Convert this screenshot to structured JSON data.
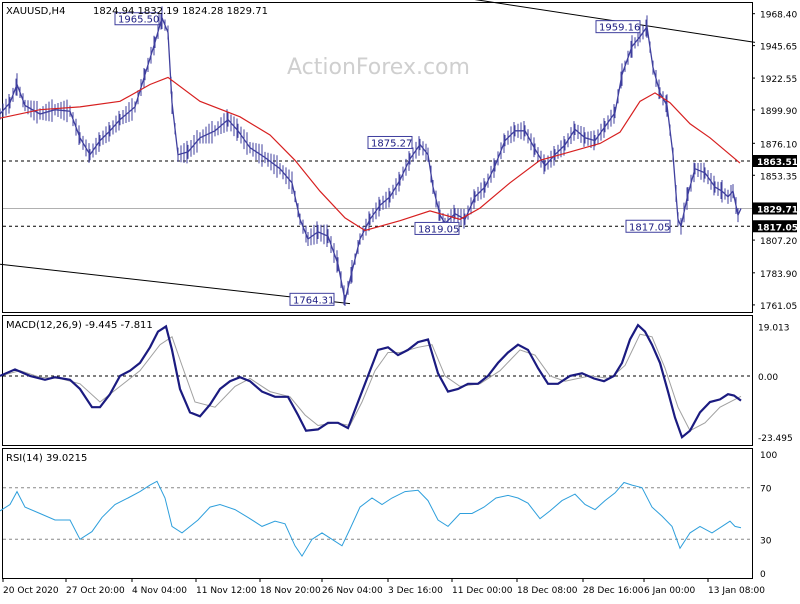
{
  "header": {
    "symbol": "XAUUSD,H4",
    "ohlc": "1824.94 1832.19 1824.28 1829.71",
    "watermark": "ActionForex.com"
  },
  "chart_data": [
    {
      "type": "candlestick",
      "title": "XAUUSD,H4 1824.94 1832.19 1824.28 1829.71",
      "ylim": [
        1756,
        1976
      ],
      "y_ticks": [
        1968.4,
        1945.65,
        1922.55,
        1899.9,
        1876.1,
        1853.35,
        1830.25,
        1807.2,
        1783.9,
        1761.05
      ],
      "y_tick_labels": [
        "1968.40",
        "1945.65",
        "1922.55",
        "1899.90",
        "1876.10",
        "1853.35",
        "1830.25",
        "1807.20",
        "1783.90",
        "1761.05"
      ],
      "x_tick_labels": [
        "20 Oct 2020",
        "27 Oct 20:00",
        "4 Nov 04:00",
        "11 Nov 12:00",
        "18 Nov 20:00",
        "26 Nov 04:00",
        "3 Dec 16:00",
        "11 Dec 00:00",
        "18 Dec 08:00",
        "28 Dec 16:00",
        "6 Jan 00:00",
        "13 Jan 08:00"
      ],
      "price_path": [
        [
          0,
          1897
        ],
        [
          10,
          1905
        ],
        [
          17,
          1918
        ],
        [
          25,
          1903
        ],
        [
          40,
          1897
        ],
        [
          55,
          1900
        ],
        [
          70,
          1899
        ],
        [
          80,
          1880
        ],
        [
          90,
          1868
        ],
        [
          100,
          1878
        ],
        [
          110,
          1885
        ],
        [
          120,
          1893
        ],
        [
          135,
          1902
        ],
        [
          145,
          1925
        ],
        [
          155,
          1948
        ],
        [
          162,
          1965.5
        ],
        [
          168,
          1955
        ],
        [
          172,
          1905
        ],
        [
          178,
          1868
        ],
        [
          188,
          1870
        ],
        [
          200,
          1880
        ],
        [
          215,
          1885
        ],
        [
          228,
          1893
        ],
        [
          238,
          1885
        ],
        [
          250,
          1873
        ],
        [
          265,
          1866
        ],
        [
          280,
          1858
        ],
        [
          292,
          1848
        ],
        [
          300,
          1822
        ],
        [
          308,
          1808
        ],
        [
          318,
          1813
        ],
        [
          328,
          1810
        ],
        [
          338,
          1790
        ],
        [
          345,
          1764.31
        ],
        [
          352,
          1785
        ],
        [
          360,
          1808
        ],
        [
          370,
          1822
        ],
        [
          380,
          1832
        ],
        [
          390,
          1838
        ],
        [
          400,
          1850
        ],
        [
          410,
          1865
        ],
        [
          420,
          1875.27
        ],
        [
          428,
          1868
        ],
        [
          433,
          1845
        ],
        [
          440,
          1825
        ],
        [
          445,
          1819.05
        ],
        [
          455,
          1826
        ],
        [
          465,
          1822
        ],
        [
          475,
          1838
        ],
        [
          485,
          1845
        ],
        [
          495,
          1860
        ],
        [
          505,
          1878
        ],
        [
          515,
          1885
        ],
        [
          525,
          1885
        ],
        [
          535,
          1872
        ],
        [
          545,
          1860
        ],
        [
          555,
          1868
        ],
        [
          565,
          1875
        ],
        [
          575,
          1886
        ],
        [
          585,
          1880
        ],
        [
          595,
          1878
        ],
        [
          605,
          1888
        ],
        [
          615,
          1898
        ],
        [
          622,
          1925
        ],
        [
          632,
          1945
        ],
        [
          640,
          1952
        ],
        [
          647,
          1959.16
        ],
        [
          653,
          1930
        ],
        [
          660,
          1912
        ],
        [
          667,
          1903
        ],
        [
          673,
          1868
        ],
        [
          678,
          1822
        ],
        [
          681,
          1817.05
        ],
        [
          688,
          1840
        ],
        [
          695,
          1858
        ],
        [
          705,
          1855
        ],
        [
          715,
          1845
        ],
        [
          722,
          1842
        ],
        [
          728,
          1838
        ],
        [
          733,
          1842
        ],
        [
          738,
          1825
        ],
        [
          741,
          1829.71
        ]
      ],
      "moving_average": [
        [
          0,
          1894
        ],
        [
          40,
          1900
        ],
        [
          80,
          1902
        ],
        [
          120,
          1906
        ],
        [
          150,
          1918
        ],
        [
          168,
          1923
        ],
        [
          200,
          1906
        ],
        [
          240,
          1895
        ],
        [
          270,
          1882
        ],
        [
          295,
          1864
        ],
        [
          320,
          1842
        ],
        [
          345,
          1823
        ],
        [
          365,
          1814
        ],
        [
          400,
          1821
        ],
        [
          430,
          1828
        ],
        [
          460,
          1822
        ],
        [
          480,
          1830
        ],
        [
          510,
          1848
        ],
        [
          540,
          1864
        ],
        [
          570,
          1870
        ],
        [
          600,
          1876
        ],
        [
          620,
          1884
        ],
        [
          640,
          1906
        ],
        [
          655,
          1912
        ],
        [
          670,
          1905
        ],
        [
          690,
          1890
        ],
        [
          710,
          1880
        ],
        [
          740,
          1862
        ]
      ],
      "highlight_levels": [
        1863.51,
        1829.71,
        1817.05
      ],
      "highlight_labels": [
        "1863.51",
        "1829.71",
        "1817.05"
      ],
      "annotations": [
        {
          "text": "1965.50",
          "x": 162,
          "y": 1965.5
        },
        {
          "text": "1959.16",
          "x": 647,
          "y": 1959.16
        },
        {
          "text": "1875.27",
          "x": 420,
          "y": 1875.27
        },
        {
          "text": "1819.05",
          "x": 445,
          "y": 1819.05
        },
        {
          "text": "1817.05",
          "x": 681,
          "y": 1817.05
        },
        {
          "text": "1764.31",
          "x": 345,
          "y": 1764.31
        }
      ],
      "channel_upper": [
        [
          470,
          1979
        ],
        [
          755,
          1948
        ]
      ],
      "channel_lower": [
        [
          0,
          1790
        ],
        [
          350,
          1762
        ]
      ],
      "colors": {
        "price": "#3f3f9e",
        "ma": "#d72020"
      }
    },
    {
      "type": "line",
      "title": "MACD(12,26,9) -9.445 -7.811",
      "ylim": [
        -26.5,
        23
      ],
      "y_ticks": [
        19.013,
        0.0,
        -23.495
      ],
      "y_tick_labels": [
        "19.013",
        "0.00",
        "-23.495"
      ],
      "macd": [
        [
          0,
          0
        ],
        [
          15,
          2.5
        ],
        [
          30,
          0
        ],
        [
          45,
          -1.5
        ],
        [
          55,
          -0.5
        ],
        [
          70,
          -1.5
        ],
        [
          80,
          -5
        ],
        [
          92,
          -12
        ],
        [
          100,
          -12
        ],
        [
          110,
          -7
        ],
        [
          120,
          0
        ],
        [
          130,
          2
        ],
        [
          140,
          5
        ],
        [
          150,
          11
        ],
        [
          158,
          17
        ],
        [
          166,
          19.013
        ],
        [
          172,
          10
        ],
        [
          180,
          -5
        ],
        [
          190,
          -14
        ],
        [
          200,
          -15.5
        ],
        [
          210,
          -11
        ],
        [
          220,
          -5
        ],
        [
          230,
          -2
        ],
        [
          240,
          -0.5
        ],
        [
          250,
          -2
        ],
        [
          262,
          -6
        ],
        [
          275,
          -8
        ],
        [
          288,
          -8
        ],
        [
          298,
          -15
        ],
        [
          306,
          -21
        ],
        [
          318,
          -20.5
        ],
        [
          328,
          -18
        ],
        [
          338,
          -18
        ],
        [
          348,
          -20
        ],
        [
          358,
          -10
        ],
        [
          368,
          0
        ],
        [
          378,
          10
        ],
        [
          388,
          11
        ],
        [
          398,
          8
        ],
        [
          408,
          10
        ],
        [
          418,
          13
        ],
        [
          428,
          14
        ],
        [
          438,
          1
        ],
        [
          448,
          -6
        ],
        [
          458,
          -5
        ],
        [
          468,
          -3
        ],
        [
          478,
          -3
        ],
        [
          488,
          0
        ],
        [
          498,
          5
        ],
        [
          508,
          9
        ],
        [
          518,
          12
        ],
        [
          528,
          10
        ],
        [
          538,
          3
        ],
        [
          548,
          -3
        ],
        [
          558,
          -3
        ],
        [
          570,
          0
        ],
        [
          582,
          1
        ],
        [
          594,
          -1
        ],
        [
          604,
          -2
        ],
        [
          614,
          0
        ],
        [
          622,
          5
        ],
        [
          630,
          14
        ],
        [
          638,
          19.5
        ],
        [
          645,
          17
        ],
        [
          652,
          12
        ],
        [
          660,
          5
        ],
        [
          668,
          -6
        ],
        [
          675,
          -16
        ],
        [
          682,
          -23.495
        ],
        [
          690,
          -21
        ],
        [
          700,
          -14
        ],
        [
          710,
          -10
        ],
        [
          720,
          -9
        ],
        [
          728,
          -7
        ],
        [
          734,
          -7.5
        ],
        [
          741,
          -9.445
        ]
      ],
      "signal": [
        [
          0,
          0
        ],
        [
          20,
          2
        ],
        [
          40,
          -0.5
        ],
        [
          60,
          -1
        ],
        [
          80,
          -3
        ],
        [
          100,
          -10
        ],
        [
          120,
          -4
        ],
        [
          140,
          2
        ],
        [
          160,
          12
        ],
        [
          172,
          15
        ],
        [
          182,
          4
        ],
        [
          195,
          -10
        ],
        [
          215,
          -12
        ],
        [
          235,
          -4
        ],
        [
          250,
          -1
        ],
        [
          270,
          -6
        ],
        [
          290,
          -8
        ],
        [
          305,
          -15
        ],
        [
          318,
          -19
        ],
        [
          335,
          -18
        ],
        [
          350,
          -19
        ],
        [
          362,
          -10
        ],
        [
          375,
          2
        ],
        [
          388,
          9
        ],
        [
          400,
          9
        ],
        [
          418,
          11
        ],
        [
          432,
          12
        ],
        [
          445,
          0
        ],
        [
          460,
          -4
        ],
        [
          480,
          -3
        ],
        [
          500,
          2
        ],
        [
          520,
          10
        ],
        [
          535,
          8
        ],
        [
          550,
          0
        ],
        [
          565,
          -2
        ],
        [
          590,
          0
        ],
        [
          610,
          -1
        ],
        [
          625,
          4
        ],
        [
          640,
          16
        ],
        [
          652,
          15
        ],
        [
          665,
          3
        ],
        [
          678,
          -12
        ],
        [
          690,
          -21
        ],
        [
          705,
          -18
        ],
        [
          720,
          -12
        ],
        [
          741,
          -7.811
        ]
      ],
      "colors": {
        "macd": "#1b1b80",
        "signal": "#a0a0a0"
      }
    },
    {
      "type": "line",
      "title": "RSI(14) 39.0215",
      "ylim": [
        0,
        100
      ],
      "y_ticks": [
        100,
        70,
        30,
        0
      ],
      "y_tick_labels": [
        "100",
        "70",
        "30",
        "0"
      ],
      "rsi": [
        [
          0,
          52
        ],
        [
          10,
          57
        ],
        [
          17,
          67
        ],
        [
          25,
          55
        ],
        [
          40,
          50
        ],
        [
          55,
          45
        ],
        [
          70,
          45
        ],
        [
          80,
          30
        ],
        [
          92,
          36
        ],
        [
          102,
          47
        ],
        [
          115,
          57
        ],
        [
          128,
          62
        ],
        [
          140,
          67
        ],
        [
          150,
          72
        ],
        [
          157,
          75
        ],
        [
          165,
          62
        ],
        [
          172,
          40
        ],
        [
          182,
          35
        ],
        [
          198,
          45
        ],
        [
          210,
          55
        ],
        [
          220,
          57
        ],
        [
          235,
          53
        ],
        [
          248,
          47
        ],
        [
          262,
          40
        ],
        [
          275,
          44
        ],
        [
          285,
          42
        ],
        [
          295,
          25
        ],
        [
          302,
          17
        ],
        [
          312,
          30
        ],
        [
          322,
          35
        ],
        [
          332,
          30
        ],
        [
          342,
          25
        ],
        [
          350,
          38
        ],
        [
          360,
          55
        ],
        [
          372,
          62
        ],
        [
          382,
          57
        ],
        [
          392,
          62
        ],
        [
          405,
          67
        ],
        [
          418,
          68
        ],
        [
          428,
          60
        ],
        [
          438,
          45
        ],
        [
          448,
          40
        ],
        [
          460,
          50
        ],
        [
          472,
          50
        ],
        [
          484,
          55
        ],
        [
          496,
          62
        ],
        [
          508,
          64
        ],
        [
          518,
          62
        ],
        [
          528,
          58
        ],
        [
          540,
          46
        ],
        [
          550,
          52
        ],
        [
          562,
          60
        ],
        [
          575,
          65
        ],
        [
          585,
          57
        ],
        [
          595,
          53
        ],
        [
          605,
          60
        ],
        [
          615,
          66
        ],
        [
          624,
          74
        ],
        [
          632,
          72
        ],
        [
          642,
          70
        ],
        [
          652,
          55
        ],
        [
          662,
          48
        ],
        [
          672,
          40
        ],
        [
          680,
          23
        ],
        [
          690,
          35
        ],
        [
          700,
          40
        ],
        [
          712,
          35
        ],
        [
          722,
          40
        ],
        [
          730,
          44
        ],
        [
          735,
          40
        ],
        [
          741,
          39.0215
        ]
      ],
      "colors": {
        "rsi": "#2e9fdc"
      }
    }
  ]
}
